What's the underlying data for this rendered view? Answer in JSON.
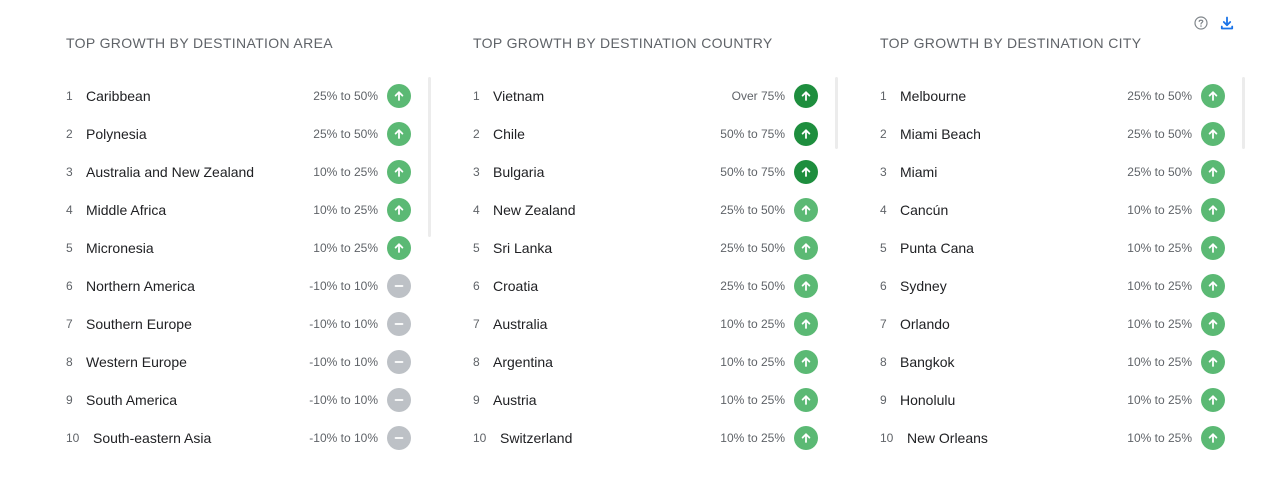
{
  "colors": {
    "up": "#5bb974",
    "up_strong": "#1e8e3e",
    "flat": "#bdc1c6",
    "accent": "#1a73e8"
  },
  "toolbar": {
    "help_icon": "help-circle-icon",
    "download_icon": "download-icon"
  },
  "panels": [
    {
      "title": "TOP GROWTH BY DESTINATION AREA",
      "items": [
        {
          "rank": "1",
          "name": "Caribbean",
          "range": "25% to 50%",
          "trend": "up"
        },
        {
          "rank": "2",
          "name": "Polynesia",
          "range": "25% to 50%",
          "trend": "up"
        },
        {
          "rank": "3",
          "name": "Australia and New Zealand",
          "range": "10% to 25%",
          "trend": "up"
        },
        {
          "rank": "4",
          "name": "Middle Africa",
          "range": "10% to 25%",
          "trend": "up"
        },
        {
          "rank": "5",
          "name": "Micronesia",
          "range": "10% to 25%",
          "trend": "up"
        },
        {
          "rank": "6",
          "name": "Northern America",
          "range": "-10% to 10%",
          "trend": "flat"
        },
        {
          "rank": "7",
          "name": "Southern Europe",
          "range": "-10% to 10%",
          "trend": "flat"
        },
        {
          "rank": "8",
          "name": "Western Europe",
          "range": "-10% to 10%",
          "trend": "flat"
        },
        {
          "rank": "9",
          "name": "South America",
          "range": "-10% to 10%",
          "trend": "flat"
        },
        {
          "rank": "10",
          "name": "South-eastern Asia",
          "range": "-10% to 10%",
          "trend": "flat"
        }
      ]
    },
    {
      "title": "TOP GROWTH BY DESTINATION COUNTRY",
      "items": [
        {
          "rank": "1",
          "name": "Vietnam",
          "range": "Over 75%",
          "trend": "up-strong"
        },
        {
          "rank": "2",
          "name": "Chile",
          "range": "50% to 75%",
          "trend": "up-strong"
        },
        {
          "rank": "3",
          "name": "Bulgaria",
          "range": "50% to 75%",
          "trend": "up-strong"
        },
        {
          "rank": "4",
          "name": "New Zealand",
          "range": "25% to 50%",
          "trend": "up"
        },
        {
          "rank": "5",
          "name": "Sri Lanka",
          "range": "25% to 50%",
          "trend": "up"
        },
        {
          "rank": "6",
          "name": "Croatia",
          "range": "25% to 50%",
          "trend": "up"
        },
        {
          "rank": "7",
          "name": "Australia",
          "range": "10% to 25%",
          "trend": "up"
        },
        {
          "rank": "8",
          "name": "Argentina",
          "range": "10% to 25%",
          "trend": "up"
        },
        {
          "rank": "9",
          "name": "Austria",
          "range": "10% to 25%",
          "trend": "up"
        },
        {
          "rank": "10",
          "name": "Switzerland",
          "range": "10% to 25%",
          "trend": "up"
        }
      ]
    },
    {
      "title": "TOP GROWTH BY DESTINATION CITY",
      "items": [
        {
          "rank": "1",
          "name": "Melbourne",
          "range": "25% to 50%",
          "trend": "up"
        },
        {
          "rank": "2",
          "name": "Miami Beach",
          "range": "25% to 50%",
          "trend": "up"
        },
        {
          "rank": "3",
          "name": "Miami",
          "range": "25% to 50%",
          "trend": "up"
        },
        {
          "rank": "4",
          "name": "Cancún",
          "range": "10% to 25%",
          "trend": "up"
        },
        {
          "rank": "5",
          "name": "Punta Cana",
          "range": "10% to 25%",
          "trend": "up"
        },
        {
          "rank": "6",
          "name": "Sydney",
          "range": "10% to 25%",
          "trend": "up"
        },
        {
          "rank": "7",
          "name": "Orlando",
          "range": "10% to 25%",
          "trend": "up"
        },
        {
          "rank": "8",
          "name": "Bangkok",
          "range": "10% to 25%",
          "trend": "up"
        },
        {
          "rank": "9",
          "name": "Honolulu",
          "range": "10% to 25%",
          "trend": "up"
        },
        {
          "rank": "10",
          "name": "New Orleans",
          "range": "10% to 25%",
          "trend": "up"
        }
      ]
    }
  ]
}
